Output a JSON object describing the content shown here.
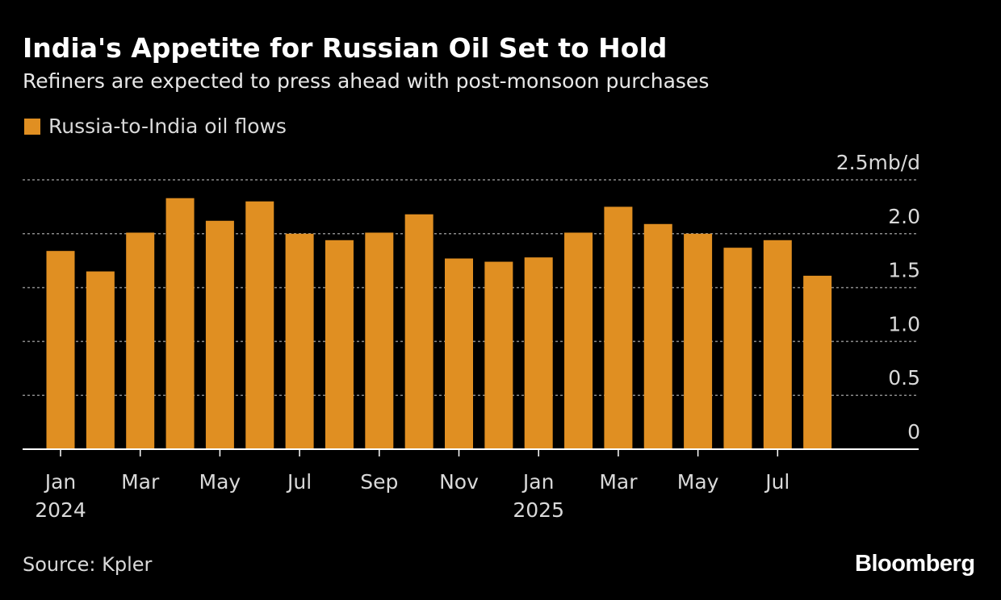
{
  "title": "India's Appetite for Russian Oil Set to Hold",
  "subtitle": "Refiners are expected to press ahead with post-monsoon purchases",
  "legend": {
    "label": "Russia-to-India oil flows",
    "color": "#e08f22"
  },
  "source": "Source: Kpler",
  "brand": "Bloomberg",
  "chart_data": {
    "type": "bar",
    "unit": "mb/d",
    "categories": [
      "Jan 2024",
      "Feb 2024",
      "Mar 2024",
      "Apr 2024",
      "May 2024",
      "Jun 2024",
      "Jul 2024",
      "Aug 2024",
      "Sep 2024",
      "Oct 2024",
      "Nov 2024",
      "Dec 2024",
      "Jan 2025",
      "Feb 2025",
      "Mar 2025",
      "Apr 2025",
      "May 2025",
      "Jun 2025",
      "Jul 2025",
      "Aug 2025"
    ],
    "series": [
      {
        "name": "Russia-to-India oil flows",
        "values": [
          1.84,
          1.65,
          2.01,
          2.33,
          2.12,
          2.3,
          2.0,
          1.94,
          2.01,
          2.18,
          1.77,
          1.74,
          1.78,
          2.01,
          2.25,
          2.09,
          2.0,
          1.87,
          1.94,
          1.61
        ]
      }
    ],
    "ylim": [
      0,
      2.5
    ],
    "yticks": [
      0,
      0.5,
      1.0,
      1.5,
      2.0,
      2.5
    ],
    "ytick_labels": [
      "0",
      "0.5",
      "1.0",
      "1.5",
      "2.0",
      "2.5mb/d"
    ],
    "xtick_labels": [
      {
        "index": 0,
        "month": "Jan",
        "year": "2024"
      },
      {
        "index": 2,
        "month": "Mar"
      },
      {
        "index": 4,
        "month": "May"
      },
      {
        "index": 6,
        "month": "Jul"
      },
      {
        "index": 8,
        "month": "Sep"
      },
      {
        "index": 10,
        "month": "Nov"
      },
      {
        "index": 12,
        "month": "Jan",
        "year": "2025"
      },
      {
        "index": 14,
        "month": "Mar"
      },
      {
        "index": 16,
        "month": "May"
      },
      {
        "index": 18,
        "month": "Jul"
      }
    ],
    "grid": true,
    "colors": {
      "bar": "#e08f22",
      "grid": "#8a8a8a",
      "axis": "#ffffff",
      "tick_text": "#d9d9d9"
    }
  }
}
